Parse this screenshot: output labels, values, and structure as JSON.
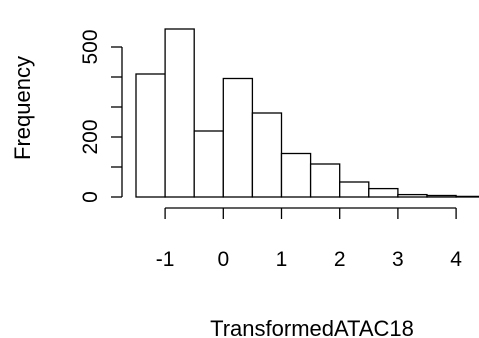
{
  "chart_data": {
    "type": "bar",
    "title": "",
    "xlabel": "TransformedATAC18",
    "ylabel": "Frequency",
    "bin_edges": [
      -1.5,
      -1.0,
      -0.5,
      0.0,
      0.5,
      1.0,
      1.5,
      2.0,
      2.5,
      3.0,
      3.5,
      4.0,
      4.5
    ],
    "values": [
      410,
      560,
      220,
      395,
      280,
      145,
      110,
      50,
      28,
      8,
      5,
      2
    ],
    "xticks": [
      -1,
      0,
      1,
      2,
      3,
      4
    ],
    "xtick_labels": [
      "-1",
      "0",
      "1",
      "2",
      "3",
      "4"
    ],
    "yticks": [
      0,
      100,
      200,
      300,
      400,
      500
    ],
    "ytick_labels": [
      "0",
      "",
      "200",
      "",
      "",
      "500"
    ],
    "xlim": [
      -1.5,
      4.5
    ],
    "ylim": [
      0,
      560
    ],
    "grid": false,
    "legend": "none"
  }
}
